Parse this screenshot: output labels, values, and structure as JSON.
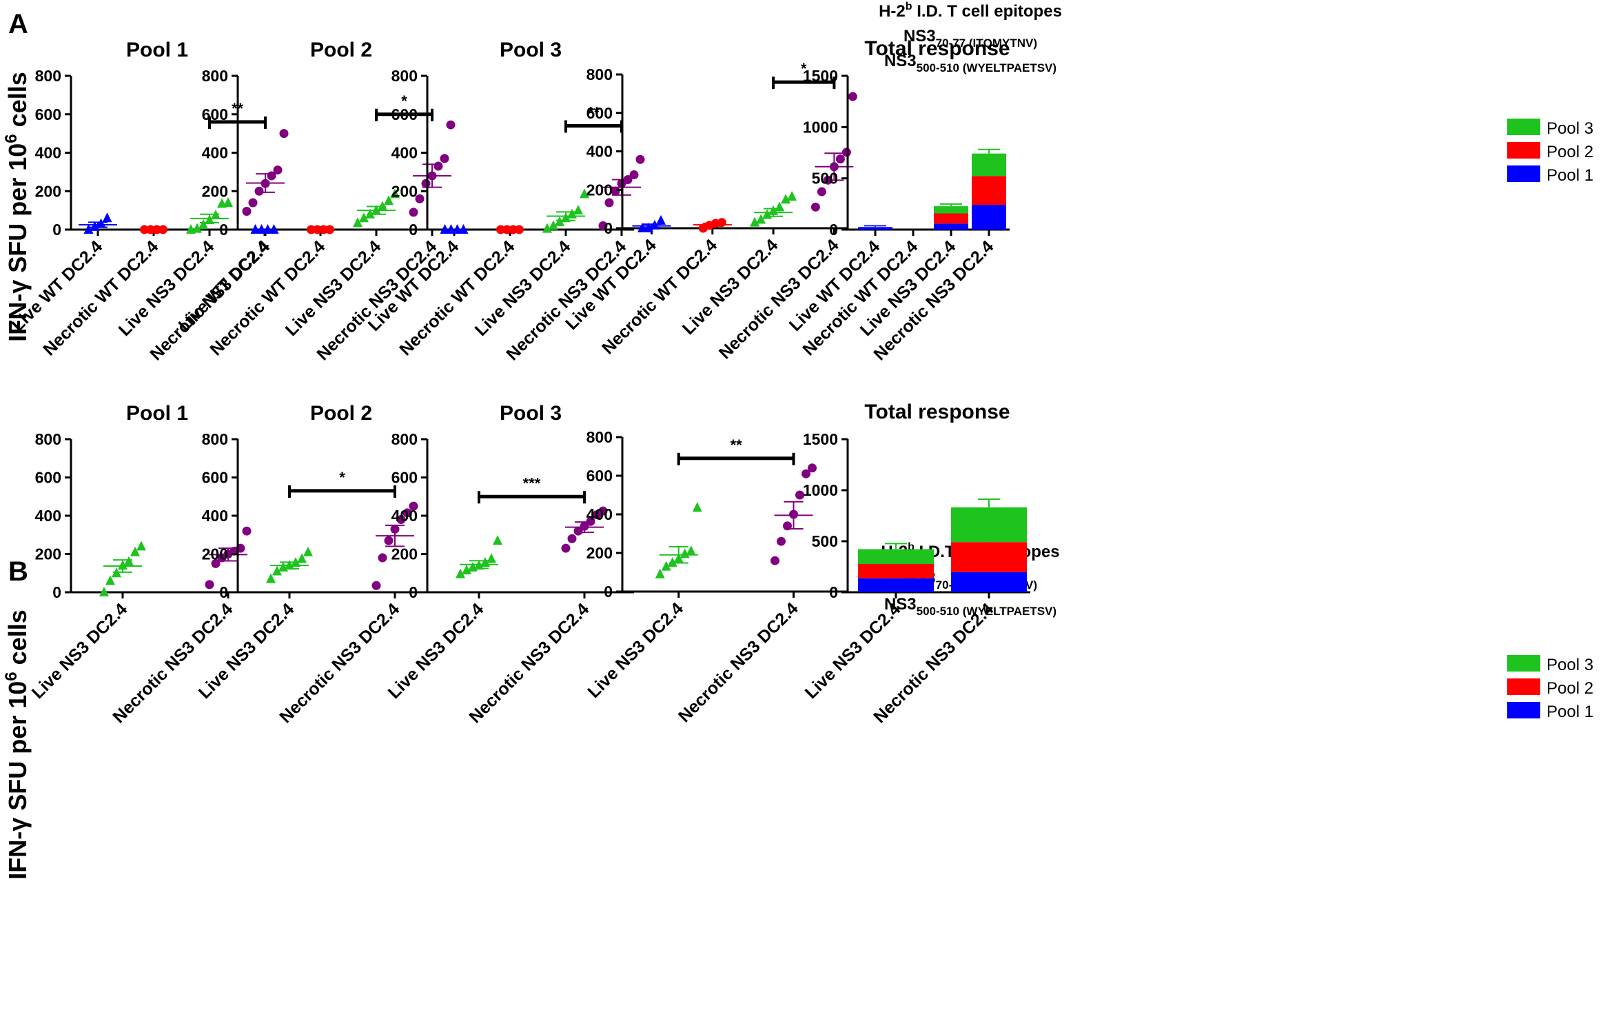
{
  "figure": {
    "panel_a_letter": "A",
    "panel_b_letter": "B",
    "y_axis_label": {
      "main": "IFN-γ SFU per 10",
      "sup": "6",
      "end": " cells"
    },
    "epitope_title": {
      "line1_pre": "H-2",
      "line1_sup": "b",
      "line1_post": " I.D. T cell epitopes",
      "line1_post_b": " I.D.T cell epitopes",
      "line2_main": "NS3",
      "line2_sub": "70-77 (ITQMYTNV)",
      "line3_main": "NS3",
      "line3_sub": "500-510 (WYELTPAETSV)"
    },
    "legend": [
      {
        "label": "Pool 3",
        "color": "#1ec31e"
      },
      {
        "label": "Pool 2",
        "color": "#ff0000"
      },
      {
        "label": "Pool 1",
        "color": "#0000ff"
      }
    ]
  },
  "chart_data": [
    {
      "panel": "A",
      "title": "Pool 1",
      "type": "scatter",
      "ylim": [
        0,
        800
      ],
      "yticks": [
        "0",
        "200",
        "400",
        "600",
        "800"
      ],
      "categories": [
        "Live WT DC2.4",
        "Necrotic WT DC2.4",
        "Live NS3 DC2.4",
        "Necrotic NS3 DC2.4"
      ],
      "groups": [
        {
          "color": "#0000ff",
          "marker": "triangle",
          "points": [
            0,
            15,
            30,
            60
          ],
          "mean": 25,
          "sem": 13
        },
        {
          "color": "#ff0000",
          "marker": "circle",
          "points": [
            0,
            0,
            0,
            0
          ],
          "mean": 0,
          "sem": 0
        },
        {
          "color": "#1ec31e",
          "marker": "triangle",
          "points": [
            0,
            5,
            25,
            50,
            75,
            135,
            140
          ],
          "mean": 58,
          "sem": 22
        },
        {
          "color": "#800080",
          "marker": "circle",
          "points": [
            95,
            140,
            200,
            240,
            280,
            310,
            500
          ],
          "mean": 242,
          "sem": 48
        }
      ],
      "significance": [
        {
          "from": 2,
          "to": 3,
          "label": "**",
          "y": 560
        }
      ]
    },
    {
      "panel": "A",
      "title": "Pool 2",
      "type": "scatter",
      "ylim": [
        0,
        800
      ],
      "yticks": [
        "0",
        "200",
        "400",
        "600",
        "800"
      ],
      "categories": [
        "Live WT DC2.4",
        "Necrotic WT DC2.4",
        "Live NS3 DC2.4",
        "Necrotic NS3 DC2.4"
      ],
      "groups": [
        {
          "color": "#0000ff",
          "marker": "triangle",
          "points": [
            0,
            0,
            0,
            0
          ],
          "mean": 0,
          "sem": 0
        },
        {
          "color": "#ff0000",
          "marker": "circle",
          "points": [
            0,
            0,
            0,
            0
          ],
          "mean": 0,
          "sem": 0
        },
        {
          "color": "#1ec31e",
          "marker": "triangle",
          "points": [
            35,
            60,
            80,
            100,
            120,
            150,
            185
          ],
          "mean": 100,
          "sem": 20
        },
        {
          "color": "#800080",
          "marker": "circle",
          "points": [
            90,
            160,
            240,
            280,
            330,
            370,
            545
          ],
          "mean": 280,
          "sem": 60
        }
      ],
      "significance": [
        {
          "from": 2,
          "to": 3,
          "label": "*",
          "y": 600
        }
      ]
    },
    {
      "panel": "A",
      "title": "Pool 3",
      "type": "scatter",
      "ylim": [
        0,
        800
      ],
      "yticks": [
        "0",
        "200",
        "400",
        "600",
        "800"
      ],
      "categories": [
        "Live WT DC2.4",
        "Necrotic WT DC2.4",
        "Live NS3 DC2.4",
        "Necrotic NS3 DC2.4"
      ],
      "groups": [
        {
          "color": "#0000ff",
          "marker": "triangle",
          "points": [
            0,
            0,
            0,
            0
          ],
          "mean": 0,
          "sem": 0
        },
        {
          "color": "#ff0000",
          "marker": "circle",
          "points": [
            0,
            0,
            0,
            0
          ],
          "mean": 0,
          "sem": 0
        },
        {
          "color": "#1ec31e",
          "marker": "triangle",
          "points": [
            5,
            20,
            40,
            60,
            80,
            100,
            185
          ],
          "mean": 70,
          "sem": 22
        },
        {
          "color": "#800080",
          "marker": "circle",
          "points": [
            20,
            140,
            200,
            240,
            260,
            285,
            365
          ],
          "mean": 220,
          "sem": 40
        }
      ],
      "significance": [
        {
          "from": 2,
          "to": 3,
          "label": "**",
          "y": 540
        }
      ]
    },
    {
      "panel": "A",
      "title": "",
      "type": "scatter",
      "ylim": [
        0,
        800
      ],
      "yticks": [
        "0",
        "200",
        "400",
        "600",
        "800"
      ],
      "categories": [
        "Live WT DC2.4",
        "Necrotic WT DC2.4",
        "Live NS3 DC2.4",
        "Necrotic NS3 DC2.4"
      ],
      "groups": [
        {
          "color": "#0000ff",
          "marker": "triangle",
          "points": [
            0,
            0,
            15,
            40
          ],
          "mean": 12,
          "sem": 9
        },
        {
          "color": "#ff0000",
          "marker": "circle",
          "points": [
            0,
            15,
            25,
            30
          ],
          "mean": 18,
          "sem": 7
        },
        {
          "color": "#1ec31e",
          "marker": "triangle",
          "points": [
            30,
            45,
            70,
            90,
            110,
            150,
            165
          ],
          "mean": 82,
          "sem": 20
        },
        {
          "color": "#800080",
          "marker": "circle",
          "points": [
            110,
            190,
            250,
            320,
            360,
            395,
            685
          ],
          "mean": 320,
          "sem": 70
        }
      ],
      "significance": [
        {
          "from": 2,
          "to": 3,
          "label": "*",
          "y": 760
        }
      ]
    },
    {
      "panel": "A",
      "title": "Total response",
      "type": "bar",
      "stacked": true,
      "ylim": [
        0,
        1500
      ],
      "yticks": [
        "0",
        "500",
        "1000",
        "1500"
      ],
      "categories": [
        "Live WT DC2.4",
        "Necrotic WT DC2.4",
        "Live NS3 DC2.4",
        "Necrotic NS3 DC2.4"
      ],
      "series": [
        {
          "name": "Pool 1",
          "color": "#0000ff",
          "values": [
            25,
            0,
            58,
            242
          ],
          "err": [
            13,
            0,
            22,
            48
          ]
        },
        {
          "name": "Pool 2",
          "color": "#ff0000",
          "values": [
            0,
            0,
            100,
            280
          ],
          "err": [
            0,
            0,
            20,
            60
          ]
        },
        {
          "name": "Pool 3",
          "color": "#1ec31e",
          "values": [
            0,
            0,
            70,
            220
          ],
          "err": [
            0,
            0,
            22,
            40
          ]
        }
      ],
      "top_err": [
        22,
        0,
        60,
        110
      ]
    },
    {
      "panel": "B",
      "title": "Pool 1",
      "type": "scatter",
      "ylim": [
        0,
        800
      ],
      "yticks": [
        "0",
        "200",
        "400",
        "600",
        "800"
      ],
      "categories": [
        "Live NS3 DC2.4",
        "Necrotic NS3 DC2.4"
      ],
      "groups": [
        {
          "color": "#1ec31e",
          "marker": "triangle",
          "points": [
            0,
            60,
            100,
            140,
            160,
            210,
            240
          ],
          "mean": 137,
          "sem": 32
        },
        {
          "color": "#800080",
          "marker": "circle",
          "points": [
            40,
            150,
            180,
            200,
            215,
            230,
            320
          ],
          "mean": 197,
          "sem": 33
        }
      ],
      "significance": []
    },
    {
      "panel": "B",
      "title": "Pool 2",
      "type": "scatter",
      "ylim": [
        0,
        800
      ],
      "yticks": [
        "0",
        "200",
        "400",
        "600",
        "800"
      ],
      "categories": [
        "Live NS3 DC2.4",
        "Necrotic NS3 DC2.4"
      ],
      "groups": [
        {
          "color": "#1ec31e",
          "marker": "triangle",
          "points": [
            70,
            110,
            130,
            140,
            155,
            175,
            210
          ],
          "mean": 140,
          "sem": 17
        },
        {
          "color": "#800080",
          "marker": "circle",
          "points": [
            35,
            180,
            270,
            330,
            380,
            415,
            450
          ],
          "mean": 295,
          "sem": 55
        }
      ],
      "significance": [
        {
          "from": 0,
          "to": 1,
          "label": "*",
          "y": 530
        }
      ]
    },
    {
      "panel": "B",
      "title": "Pool 3",
      "type": "scatter",
      "ylim": [
        0,
        800
      ],
      "yticks": [
        "0",
        "200",
        "400",
        "600",
        "800"
      ],
      "categories": [
        "Live NS3 DC2.4",
        "Necrotic NS3 DC2.4"
      ],
      "groups": [
        {
          "color": "#1ec31e",
          "marker": "triangle",
          "points": [
            95,
            115,
            130,
            140,
            155,
            175,
            270
          ],
          "mean": 145,
          "sem": 20
        },
        {
          "color": "#800080",
          "marker": "circle",
          "points": [
            230,
            280,
            320,
            345,
            370,
            405,
            425
          ],
          "mean": 340,
          "sem": 27
        }
      ],
      "significance": [
        {
          "from": 0,
          "to": 1,
          "label": "***",
          "y": 500
        }
      ]
    },
    {
      "panel": "B",
      "title": "",
      "type": "scatter",
      "ylim": [
        0,
        800
      ],
      "yticks": [
        "0",
        "200",
        "400",
        "600",
        "800"
      ],
      "categories": [
        "Live NS3 DC2.4",
        "Necrotic NS3 DC2.4"
      ],
      "groups": [
        {
          "color": "#1ec31e",
          "marker": "triangle",
          "points": [
            90,
            130,
            150,
            170,
            195,
            210,
            435
          ],
          "mean": 190,
          "sem": 42
        },
        {
          "color": "#800080",
          "marker": "circle",
          "points": [
            160,
            260,
            340,
            400,
            500,
            610,
            640
          ],
          "mean": 395,
          "sem": 70
        }
      ],
      "significance": [
        {
          "from": 0,
          "to": 1,
          "label": "**",
          "y": 690
        }
      ]
    },
    {
      "panel": "B",
      "title": "Total response",
      "type": "bar",
      "stacked": true,
      "ylim": [
        0,
        1500
      ],
      "yticks": [
        "0",
        "500",
        "1000",
        "1500"
      ],
      "categories": [
        "Live NS3 DC2.4",
        "Necrotic NS3 DC2.4"
      ],
      "series": [
        {
          "name": "Pool 1",
          "color": "#0000ff",
          "values": [
            137,
            197
          ],
          "err": [
            90,
            85
          ]
        },
        {
          "name": "Pool 2",
          "color": "#ff0000",
          "values": [
            140,
            295
          ],
          "err": [
            55,
            140
          ]
        },
        {
          "name": "Pool 3",
          "color": "#1ec31e",
          "values": [
            145,
            340
          ],
          "err": [
            55,
            80
          ]
        }
      ],
      "top_err": [
        55,
        80
      ]
    }
  ]
}
